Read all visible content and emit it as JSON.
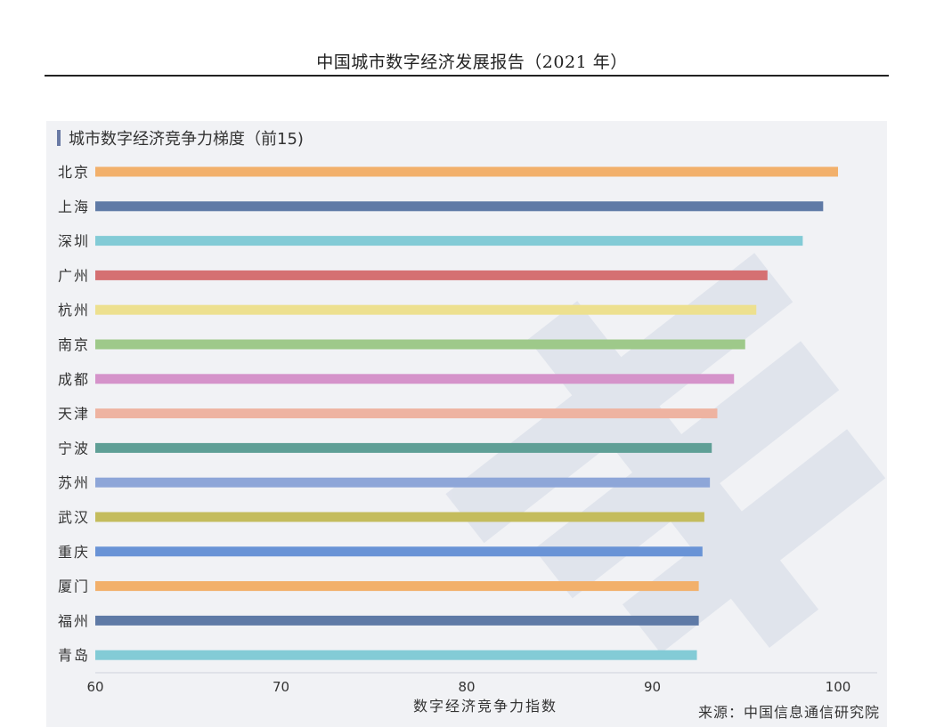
{
  "document": {
    "header": "中国城市数字经济发展报告（2021 年）"
  },
  "source": "来源：中国信息通信研究院",
  "chart_data": {
    "type": "bar",
    "orientation": "horizontal",
    "title": "城市数字经济竞争力梯度（前15)",
    "xlabel": "数字经济竞争力指数",
    "ylabel": "",
    "xlim": [
      60,
      100
    ],
    "xticks": [
      60,
      70,
      80,
      90,
      100
    ],
    "grid": false,
    "categories": [
      "北京",
      "上海",
      "深圳",
      "广州",
      "杭州",
      "南京",
      "成都",
      "天津",
      "宁波",
      "苏州",
      "武汉",
      "重庆",
      "厦门",
      "福州",
      "青岛"
    ],
    "values": [
      100,
      99.2,
      98.1,
      96.2,
      95.6,
      95.0,
      94.4,
      93.5,
      93.2,
      93.1,
      92.8,
      92.7,
      92.5,
      92.5,
      92.4
    ],
    "colors": [
      "#f2b06b",
      "#5f7aa6",
      "#83cbd6",
      "#d57072",
      "#ede08f",
      "#9ec98a",
      "#d593ca",
      "#eeb3a1",
      "#5f9f96",
      "#8ea6d8",
      "#c4bc5d",
      "#6993d6",
      "#f2b06b",
      "#5f7aa6",
      "#83cbd6"
    ]
  }
}
